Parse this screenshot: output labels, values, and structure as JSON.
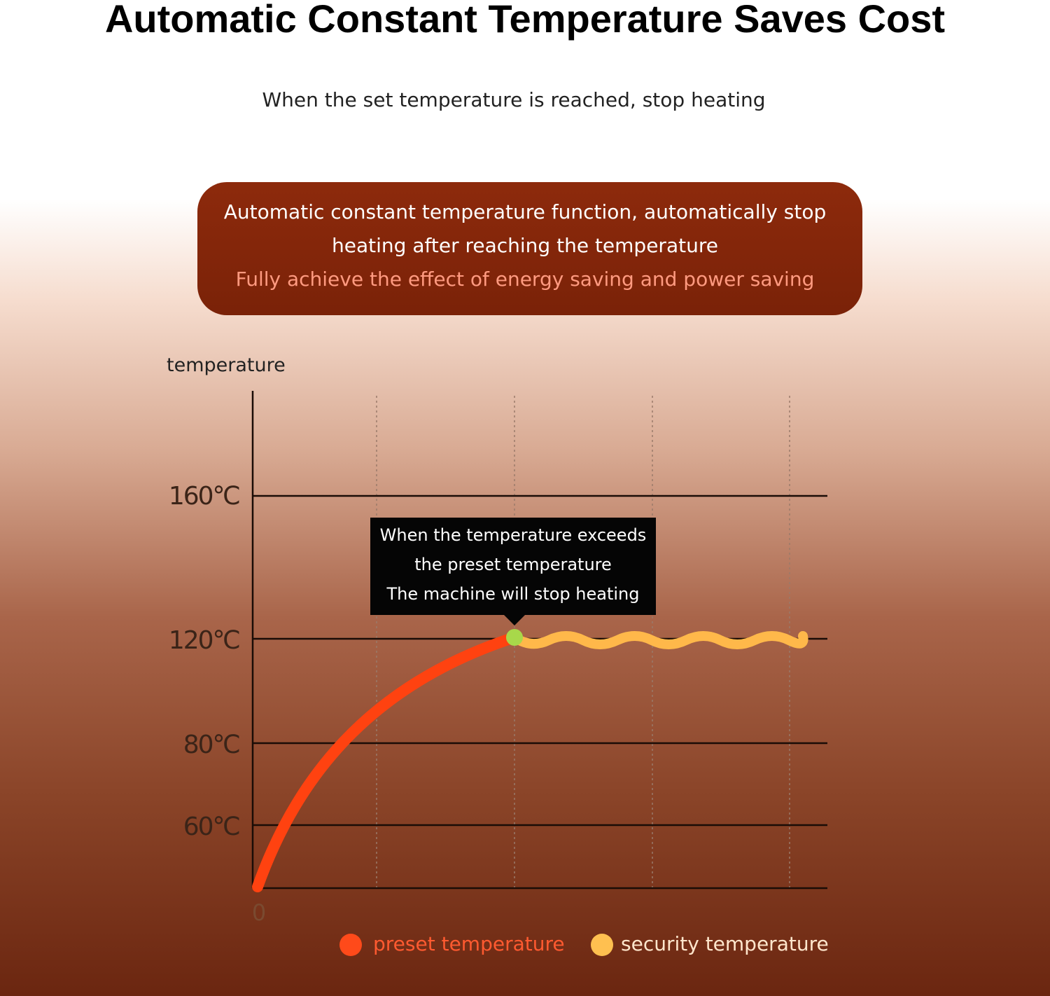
{
  "title": "Automatic Constant Temperature Saves Cost",
  "subtitle": "When the set temperature is reached, stop heating",
  "banner": {
    "lines": [
      "Automatic constant temperature function, automatically stop",
      "heating after reaching the temperature"
    ],
    "highlight": "Fully achieve the effect of energy saving and power saving"
  },
  "graph": {
    "axis_label": "temperature",
    "y_labels": [
      "160℃",
      "120℃",
      "80℃",
      "60℃"
    ],
    "origin": "0",
    "callout": [
      "When the temperature exceeds",
      "the preset temperature",
      "The machine will stop heating"
    ],
    "legend": [
      "preset temperature",
      "security temperature"
    ]
  }
}
